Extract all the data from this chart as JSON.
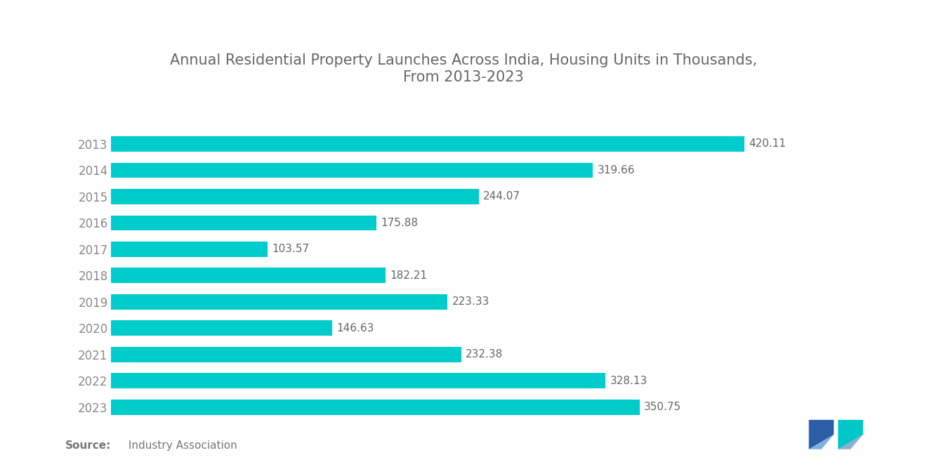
{
  "title": "Annual Residential Property Launches Across India, Housing Units in Thousands,\nFrom 2013-2023",
  "years": [
    "2013",
    "2014",
    "2015",
    "2016",
    "2017",
    "2018",
    "2019",
    "2020",
    "2021",
    "2022",
    "2023"
  ],
  "values": [
    420.11,
    319.66,
    244.07,
    175.88,
    103.57,
    182.21,
    223.33,
    146.63,
    232.38,
    328.13,
    350.75
  ],
  "bar_color": "#00CCCC",
  "background_color": "#ffffff",
  "title_color": "#666666",
  "label_color": "#666666",
  "year_color": "#888888",
  "source_fontsize": 11,
  "title_fontsize": 15,
  "label_fontsize": 11,
  "tick_fontsize": 12,
  "xlim": [
    0,
    480
  ],
  "bar_height": 0.58
}
